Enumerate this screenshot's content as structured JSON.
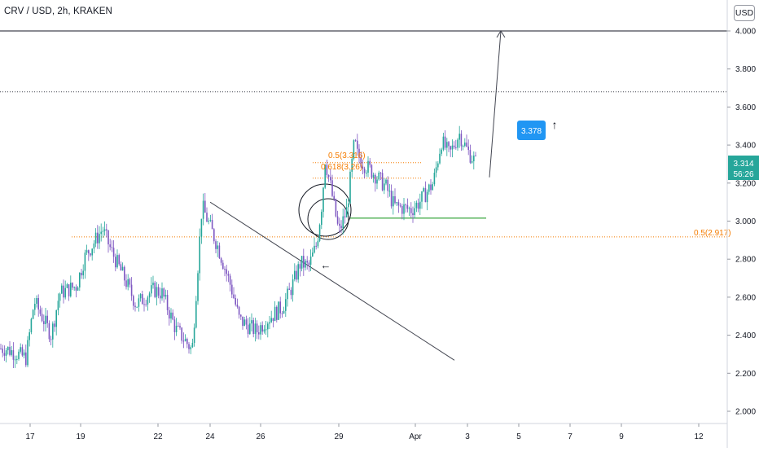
{
  "header": {
    "symbol": "CRV / USD, 2h, KRAKEN",
    "currency_button": "USD"
  },
  "colors": {
    "up_candle": "#26a69a",
    "down_candle": "#7e57c2",
    "level_orange": "#f57c00",
    "support_green": "#4caf50",
    "price_label_green": "#26a69a",
    "target_badge_blue": "#2196f3",
    "grid_line": "#b2b5be"
  },
  "chart_data": {
    "type": "candlestick",
    "ylim": [
      1.95,
      4.1
    ],
    "y_ticks": [
      "4.000",
      "3.800",
      "3.600",
      "3.400",
      "3.200",
      "3.000",
      "2.800",
      "2.600",
      "2.400",
      "2.200",
      "2.000"
    ],
    "x_ticks": [
      "17",
      "19",
      "22",
      "24",
      "26",
      "29",
      "Apr",
      "3",
      "5",
      "7",
      "9",
      "12"
    ],
    "last_price": "3.314",
    "countdown": "56:26",
    "levels": [
      {
        "name": "target",
        "value": 4.0,
        "style": "solid"
      },
      {
        "name": "resistance",
        "value": 3.68,
        "style": "dotted"
      },
      {
        "name": "fib_0.5_main",
        "value": 2.917,
        "label": "0.5(2.917)"
      },
      {
        "name": "fib_0.5_local",
        "value": 3.316,
        "label": "0.5(3.316)"
      },
      {
        "name": "fib_0.618_local",
        "value": 3.26,
        "label": "0.618(3.26)"
      },
      {
        "name": "support",
        "value": 3.02
      }
    ],
    "annotations": {
      "target_badge": "3.378",
      "up_arrow": "↑",
      "left_arrow": "←"
    },
    "trendline": {
      "from": [
        "24",
        3.1
      ],
      "to": [
        "2",
        2.32
      ]
    },
    "target_projection": {
      "from": [
        "3",
        3.38
      ],
      "to": [
        "5",
        4.0
      ]
    },
    "price_path": [
      [
        "16",
        2.33
      ],
      [
        "17",
        2.28
      ],
      [
        "17",
        2.58
      ],
      [
        "18",
        2.4
      ],
      [
        "18",
        2.62
      ],
      [
        "19",
        2.66
      ],
      [
        "19",
        2.81
      ],
      [
        "20",
        2.96
      ],
      [
        "20",
        2.85
      ],
      [
        "21",
        2.66
      ],
      [
        "21",
        2.56
      ],
      [
        "22",
        2.64
      ],
      [
        "22",
        2.62
      ],
      [
        "23",
        2.43
      ],
      [
        "23",
        2.38
      ],
      [
        "23",
        2.32
      ],
      [
        "24",
        3.08
      ],
      [
        "24",
        2.97
      ],
      [
        "24",
        2.86
      ],
      [
        "25",
        2.65
      ],
      [
        "25",
        2.48
      ],
      [
        "26",
        2.42
      ],
      [
        "26",
        2.47
      ],
      [
        "27",
        2.55
      ],
      [
        "27",
        2.64
      ],
      [
        "28",
        2.78
      ],
      [
        "28",
        2.76
      ],
      [
        "28",
        2.88
      ],
      [
        "28",
        3.33
      ],
      [
        "29",
        3.12
      ],
      [
        "29",
        3.18
      ],
      [
        "29",
        2.94
      ],
      [
        "29",
        3.06
      ],
      [
        "29",
        3.45
      ],
      [
        "30",
        3.36
      ],
      [
        "30",
        3.3
      ],
      [
        "30",
        3.26
      ],
      [
        "31",
        3.18
      ],
      [
        "31",
        3.08
      ],
      [
        "1",
        3.06
      ],
      [
        "1",
        3.1
      ],
      [
        "2",
        3.2
      ],
      [
        "2",
        3.42
      ],
      [
        "2",
        3.35
      ],
      [
        "3",
        3.46
      ],
      [
        "3",
        3.37
      ],
      [
        "3",
        3.31
      ]
    ]
  }
}
